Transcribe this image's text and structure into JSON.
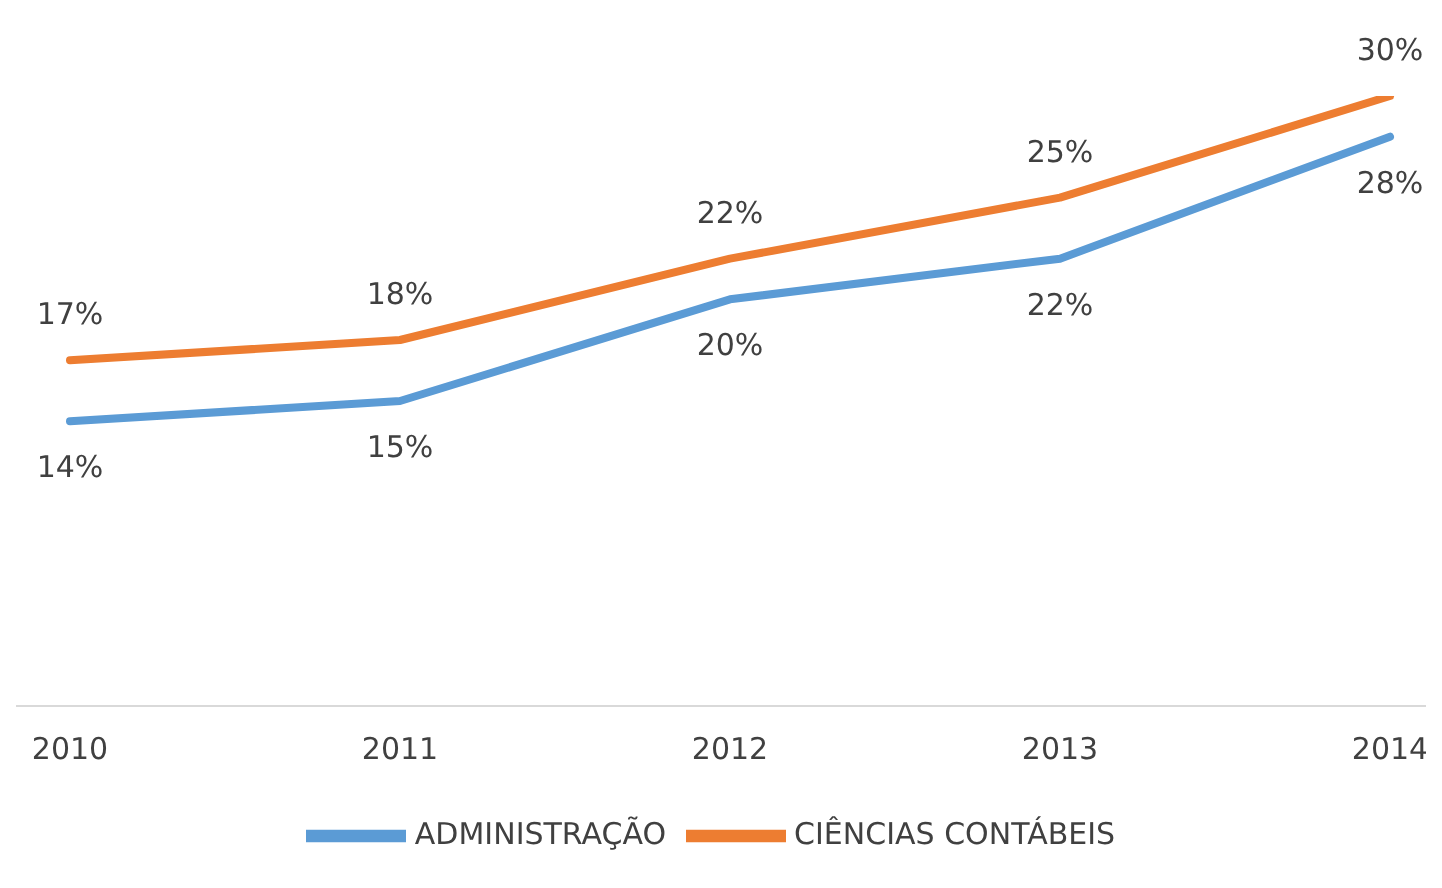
{
  "chart_data": {
    "type": "line",
    "categories": [
      "2010",
      "2011",
      "2012",
      "2013",
      "2014"
    ],
    "series": [
      {
        "name": "ADMINISTRAÇÃO",
        "color": "#5b9bd5",
        "values": [
          14,
          15,
          20,
          22,
          28
        ],
        "value_labels": [
          "14%",
          "15%",
          "20%",
          "22%",
          "28%"
        ]
      },
      {
        "name": "CIÊNCIAS CONTÁBEIS",
        "color": "#ed7d31",
        "values": [
          17,
          18,
          22,
          25,
          30
        ],
        "value_labels": [
          "17%",
          "18%",
          "22%",
          "25%",
          "30%"
        ]
      }
    ],
    "legend": "bottom",
    "marker": "none",
    "line_style": "solid"
  }
}
